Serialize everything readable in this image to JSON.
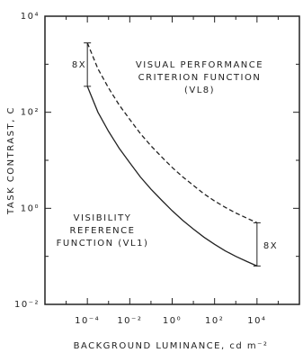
{
  "chart_data": {
    "type": "line",
    "ylabel": "TASK CONTRAST, C",
    "xlabel": "BACKGROUND LUMINANCE, cd m⁻²",
    "xscale": "log",
    "yscale": "log",
    "xlim": [
      1e-06,
      1000000
    ],
    "ylim": [
      0.01,
      10000
    ],
    "xticks": [
      {
        "value": 0.0001,
        "label": "10⁻⁴"
      },
      {
        "value": 0.01,
        "label": "10⁻²"
      },
      {
        "value": 1,
        "label": "10⁰"
      },
      {
        "value": 100,
        "label": "10²"
      },
      {
        "value": 10000,
        "label": "10⁴"
      }
    ],
    "yticks": [
      {
        "value": 0.01,
        "label": "10⁻²"
      },
      {
        "value": 1,
        "label": "10⁰"
      },
      {
        "value": 100,
        "label": "10²"
      },
      {
        "value": 10000,
        "label": "10⁴"
      }
    ],
    "xminorticks": [
      1e-05,
      0.001,
      0.1,
      10,
      1000,
      100000
    ],
    "yminorticks": [
      0.1,
      10,
      1000
    ],
    "x": [
      0.0001,
      0.000316,
      0.001,
      0.00316,
      0.01,
      0.0316,
      0.1,
      0.316,
      1,
      3.16,
      10,
      31.6,
      100,
      316,
      1000,
      3160,
      10000
    ],
    "series": [
      {
        "color": "#222222",
        "dash": false,
        "values": [
          347,
          100,
          40,
          17.8,
          8.9,
          4.5,
          2.5,
          1.48,
          0.89,
          0.56,
          0.37,
          0.25,
          0.178,
          0.13,
          0.1,
          0.079,
          0.063
        ]
      },
      {
        "color": "#222222",
        "dash": true,
        "values": [
          2780,
          800,
          320,
          142,
          71,
          36,
          20,
          11.8,
          7.1,
          4.5,
          3.0,
          2.0,
          1.42,
          1.05,
          0.8,
          0.63,
          0.5
        ]
      }
    ],
    "annotations": [
      "8X",
      "8X",
      "VISUAL PERFORMANCE",
      "CRITERION FUNCTION",
      "(VL8)",
      "VISIBILITY",
      "REFERENCE",
      "FUNCTION (VL1)"
    ]
  }
}
